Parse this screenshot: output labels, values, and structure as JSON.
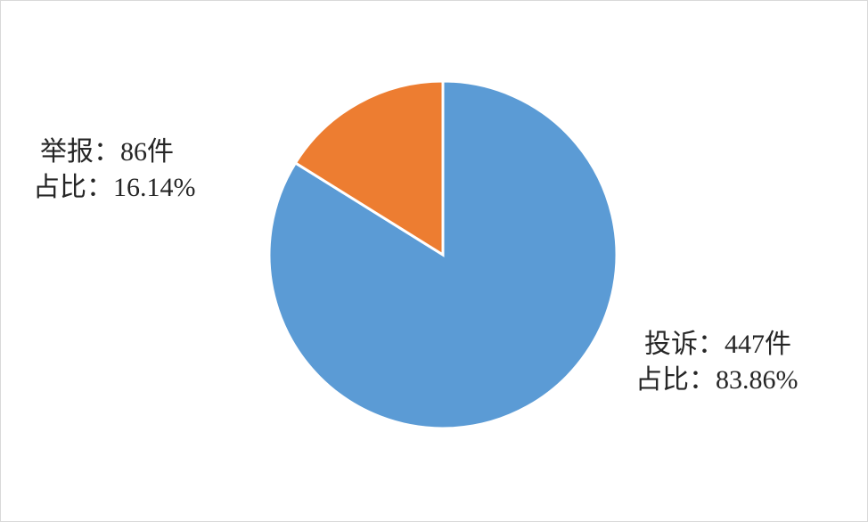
{
  "chart_data": {
    "type": "pie",
    "title": "",
    "start": "top",
    "direction": "clockwise",
    "slices": [
      {
        "name": "投诉",
        "value": 447,
        "percent": 83.86,
        "color": "#5B9BD5",
        "label_line1": "投诉：447件",
        "label_line2": "占比：83.86%"
      },
      {
        "name": "举报",
        "value": 86,
        "percent": 16.14,
        "color": "#ED7D31",
        "label_line1": "举报：86件",
        "label_line2": "占比：16.14%"
      }
    ],
    "legend": "none"
  }
}
